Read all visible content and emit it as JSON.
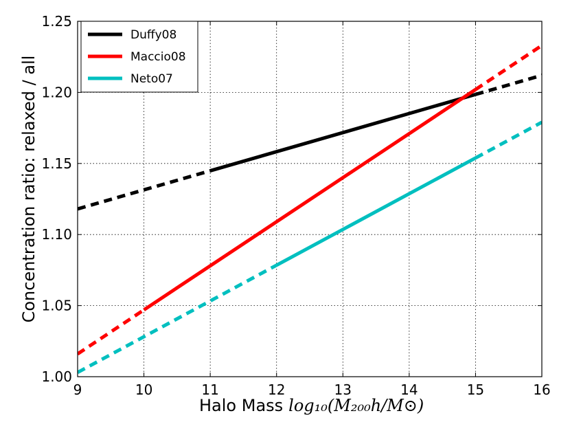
{
  "chart_data": {
    "type": "line",
    "title": "",
    "xlabel": "Halo Mass",
    "xlabel_math": "log₁₀(M₂₀₀h/M⊙)",
    "ylabel": "Concentration ratio: relaxed / all",
    "xlim": [
      9,
      16
    ],
    "ylim": [
      1.0,
      1.25
    ],
    "xticks": [
      "9",
      "10",
      "11",
      "12",
      "13",
      "14",
      "15",
      "16"
    ],
    "yticks": [
      "1.00",
      "1.05",
      "1.10",
      "1.15",
      "1.20",
      "1.25"
    ],
    "grid": true,
    "legend_position": "top-left",
    "series": [
      {
        "name": "Duffy08",
        "color": "#000000",
        "x": [
          9,
          16
        ],
        "y": [
          1.118,
          1.212
        ],
        "solid_range": [
          11,
          15
        ]
      },
      {
        "name": "Maccio08",
        "color": "#ff0000",
        "x": [
          9,
          16
        ],
        "y": [
          1.016,
          1.233
        ],
        "solid_range": [
          10,
          15
        ]
      },
      {
        "name": "Neto07",
        "color": "#00bfbf",
        "x": [
          9,
          16
        ],
        "y": [
          1.003,
          1.179
        ],
        "solid_range": [
          12,
          15
        ]
      }
    ]
  }
}
